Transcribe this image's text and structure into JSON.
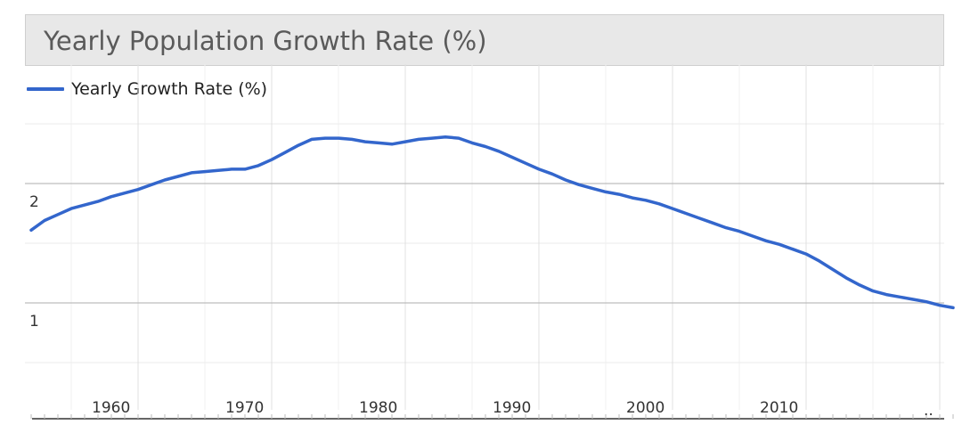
{
  "chart_data": {
    "type": "line",
    "title": "Yearly Population Growth Rate (%)",
    "xlabel": "",
    "ylabel": "",
    "legend": "top-left",
    "grid": true,
    "line_color": "#3366cc",
    "x_ticks": [
      1960,
      1970,
      1980,
      1990,
      2000,
      2010
    ],
    "y_ticks": [
      1,
      2
    ],
    "extra_x_label": "..",
    "xlim": [
      1952,
      2021
    ],
    "ylim": [
      0.5,
      3.0
    ],
    "series": [
      {
        "name": "Yearly Growth Rate (%)",
        "x": [
          1952,
          1953,
          1954,
          1955,
          1956,
          1957,
          1958,
          1959,
          1960,
          1961,
          1962,
          1963,
          1964,
          1965,
          1966,
          1967,
          1968,
          1969,
          1970,
          1971,
          1972,
          1973,
          1974,
          1975,
          1976,
          1977,
          1978,
          1979,
          1980,
          1981,
          1982,
          1983,
          1984,
          1985,
          1986,
          1987,
          1988,
          1989,
          1990,
          1991,
          1992,
          1993,
          1994,
          1995,
          1996,
          1997,
          1998,
          1999,
          2000,
          2001,
          2002,
          2003,
          2004,
          2005,
          2006,
          2007,
          2008,
          2009,
          2010,
          2011,
          2012,
          2013,
          2014,
          2015,
          2016,
          2017,
          2018,
          2019,
          2020,
          2021
        ],
        "values": [
          1.61,
          1.69,
          1.74,
          1.79,
          1.82,
          1.85,
          1.89,
          1.92,
          1.95,
          1.99,
          2.03,
          2.06,
          2.09,
          2.1,
          2.11,
          2.12,
          2.12,
          2.15,
          2.2,
          2.26,
          2.32,
          2.37,
          2.38,
          2.38,
          2.37,
          2.35,
          2.34,
          2.33,
          2.35,
          2.37,
          2.38,
          2.39,
          2.38,
          2.34,
          2.31,
          2.27,
          2.22,
          2.17,
          2.12,
          2.08,
          2.03,
          1.99,
          1.96,
          1.93,
          1.91,
          1.88,
          1.86,
          1.83,
          1.79,
          1.75,
          1.71,
          1.67,
          1.63,
          1.6,
          1.56,
          1.52,
          1.49,
          1.45,
          1.41,
          1.35,
          1.28,
          1.21,
          1.15,
          1.1,
          1.07,
          1.05,
          1.03,
          1.01,
          0.98,
          0.96
        ]
      }
    ]
  }
}
